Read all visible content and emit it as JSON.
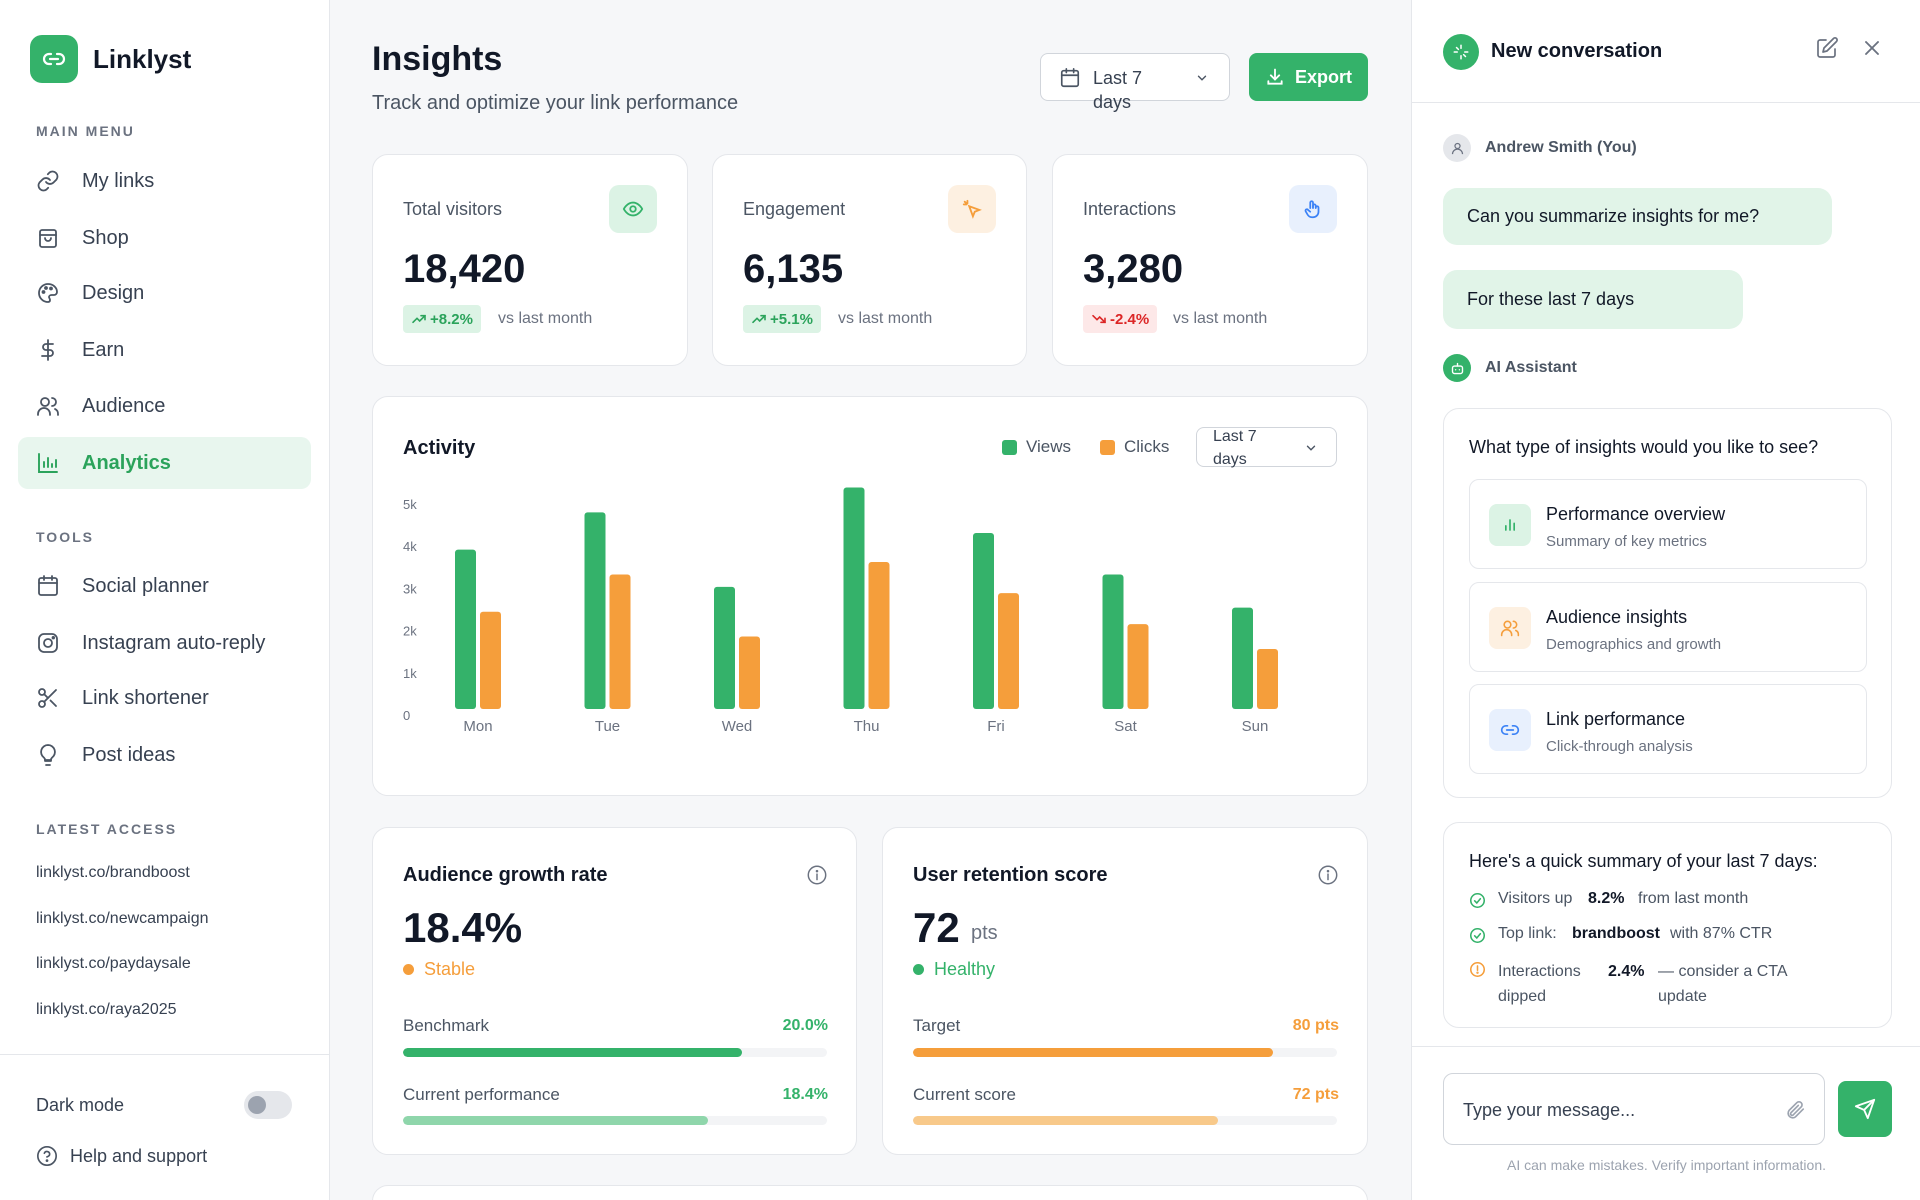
{
  "brand": {
    "name": "Linklyst",
    "icon": "link-icon"
  },
  "sidebar": {
    "main_menu_label": "MAIN MENU",
    "main_items": [
      {
        "label": "My links",
        "icon": "link-icon"
      },
      {
        "label": "Shop",
        "icon": "shopping-bag-icon"
      },
      {
        "label": "Design",
        "icon": "palette-icon"
      },
      {
        "label": "Earn",
        "icon": "dollar-icon"
      },
      {
        "label": "Audience",
        "icon": "users-icon"
      },
      {
        "label": "Analytics",
        "icon": "bar-chart-icon",
        "active": true
      }
    ],
    "tools_label": "TOOLS",
    "tool_items": [
      {
        "label": "Social planner",
        "icon": "calendar-icon"
      },
      {
        "label": "Instagram auto-reply",
        "icon": "instagram-icon"
      },
      {
        "label": "Link shortener",
        "icon": "scissors-icon"
      },
      {
        "label": "Post ideas",
        "icon": "lightbulb-icon"
      }
    ],
    "latest_label": "LATEST ACCESS",
    "latest_links": [
      "linklyst.co/brandboost",
      "linklyst.co/newcampaign",
      "linklyst.co/paydaysale",
      "linklyst.co/raya2025"
    ],
    "dark_mode_label": "Dark mode",
    "dark_mode_on": false,
    "help_label": "Help and support"
  },
  "header": {
    "title": "Insights",
    "subtitle": "Track and optimize your link performance",
    "date_range": "Last 7 days",
    "export_label": "Export"
  },
  "stats": [
    {
      "label": "Total visitors",
      "value": "18,420",
      "change": "+8.2%",
      "trend": "up",
      "vs": "vs last month",
      "icon": "eye-icon",
      "icon_color": "#34b26a",
      "icon_bg": "#dcf3e5"
    },
    {
      "label": "Engagement",
      "value": "6,135",
      "change": "+5.1%",
      "trend": "up",
      "vs": "vs last month",
      "icon": "sparkle-click-icon",
      "icon_color": "#f59e3b",
      "icon_bg": "#fdf0e1"
    },
    {
      "label": "Interactions",
      "value": "3,280",
      "change": "-2.4%",
      "trend": "down",
      "vs": "vs last month",
      "icon": "hand-pointer-icon",
      "icon_color": "#3b82f6",
      "icon_bg": "#e8f0fd"
    }
  ],
  "activity": {
    "title": "Activity",
    "legend_views": "Views",
    "legend_clicks": "Clicks",
    "range": "Last 7 days"
  },
  "chart_data": {
    "type": "bar",
    "title": "Activity",
    "categories": [
      "Mon",
      "Tue",
      "Wed",
      "Thu",
      "Fri",
      "Sat",
      "Sun"
    ],
    "series": [
      {
        "name": "Views",
        "color": "#34b26a",
        "values": [
          3850,
          4750,
          2950,
          5350,
          4250,
          3250,
          2450
        ]
      },
      {
        "name": "Clicks",
        "color": "#f59e3b",
        "values": [
          2350,
          3250,
          1750,
          3550,
          2800,
          2050,
          1450
        ]
      }
    ],
    "y_ticks": [
      "0",
      "1k",
      "2k",
      "3k",
      "4k",
      "5k"
    ],
    "ylim": [
      0,
      5000
    ],
    "grid": false,
    "legend": "top-right"
  },
  "audience_growth": {
    "title": "Audience growth rate",
    "value": "18.4%",
    "status": "Stable",
    "status_color": "#f59e3b",
    "bar1_label": "Benchmark",
    "bar1_value": "20.0%",
    "bar1_fill": 0.8,
    "bar1_color": "#34b26a",
    "bar2_label": "Current performance",
    "bar2_value": "18.4%",
    "bar2_fill": 0.72,
    "bar2_color": "#8fd6ab",
    "value_color": "#34b26a"
  },
  "retention": {
    "title": "User retention score",
    "value": "72",
    "unit": "pts",
    "status": "Healthy",
    "status_color": "#34b26a",
    "bar1_label": "Target",
    "bar1_value": "80 pts",
    "bar1_fill": 0.85,
    "bar1_color": "#f59e3b",
    "bar2_label": "Current score",
    "bar2_value": "72 pts",
    "bar2_fill": 0.72,
    "bar2_color": "#f8c98a",
    "value_color": "#f59e3b"
  },
  "chat": {
    "title": "New conversation",
    "user_name": "Andrew Smith (You)",
    "user_msg1": "Can you summarize insights for me?",
    "user_msg2": "For these last 7 days",
    "assistant_name": "AI Assistant",
    "question": "What type of insights would you like to see?",
    "options": [
      {
        "title": "Performance overview",
        "subtitle": "Summary of key metrics",
        "icon": "bar-chart-icon",
        "color": "#34b26a",
        "bg": "#dcf3e5"
      },
      {
        "title": "Audience insights",
        "subtitle": "Demographics and growth",
        "icon": "users-icon",
        "color": "#f59e3b",
        "bg": "#fdf0e1"
      },
      {
        "title": "Link performance",
        "subtitle": "Click-through analysis",
        "icon": "link-icon",
        "color": "#3b82f6",
        "bg": "#e8f0fd"
      }
    ],
    "summary_title": "Here's a quick summary of your last 7 days:",
    "summary": [
      {
        "pre": "Visitors up",
        "bold": "8.2%",
        "post": "from last month",
        "icon": "check-circle-icon"
      },
      {
        "pre": "Top link:",
        "bold": "brandboost",
        "post": "with 87% CTR",
        "icon": "check-circle-icon"
      },
      {
        "pre": "Interactions dipped",
        "bold": "2.4%",
        "post": "— consider a CTA update",
        "icon": "alert-circle-icon"
      }
    ],
    "input_placeholder": "Type your message...",
    "disclaimer": "AI can make mistakes. Verify important information."
  }
}
